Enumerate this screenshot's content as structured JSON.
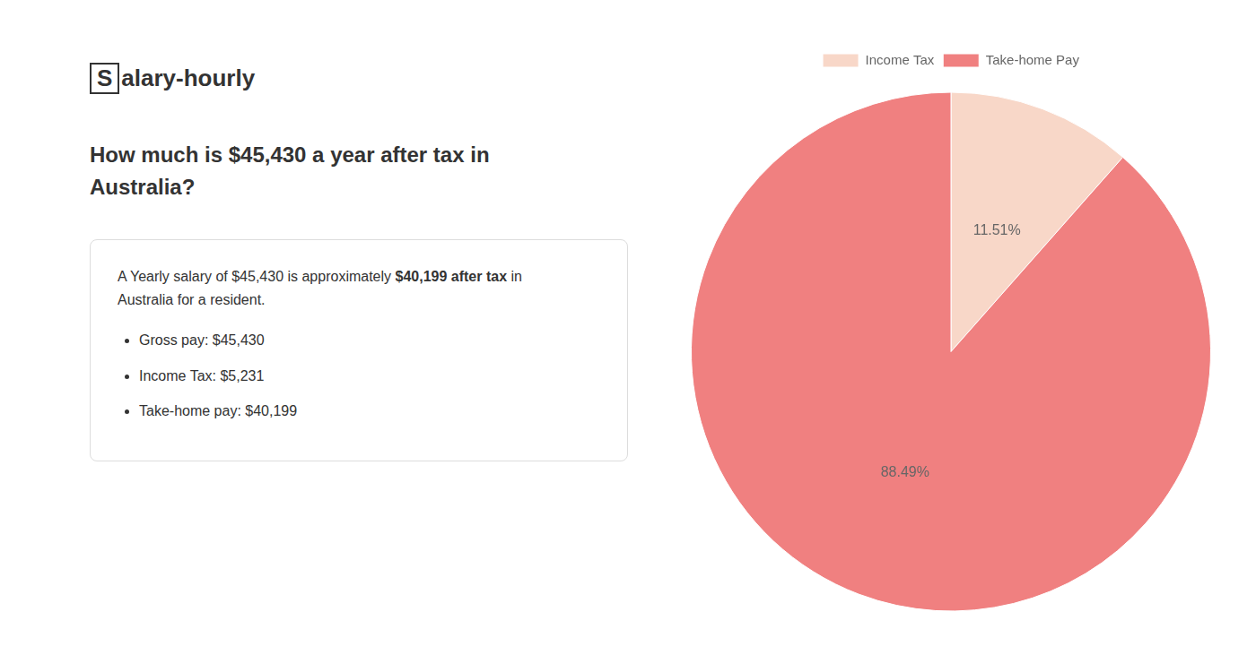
{
  "chart_data": {
    "type": "pie",
    "title": "How much is $45,430 a year after tax in\nAustralia?",
    "categories": [
      "Income Tax",
      "Take-home Pay"
    ],
    "values": [
      11.51,
      88.49
    ],
    "value_labels": [
      "11.51%",
      "88.49%"
    ],
    "colors": [
      "#f8d7c8",
      "#f08080"
    ],
    "data_labels": true,
    "legend": "top",
    "annotations": [
      [
        "S",
        "alary-hourly"
      ],
      [
        "A Yearly salary of $45,430 is approximately ",
        "$40,199 after tax",
        " in"
      ],
      [
        "Australia for a resident."
      ],
      [
        "Gross pay: $45,430"
      ],
      [
        "Income Tax: $5,231"
      ],
      [
        "Take-home pay: $40,199"
      ]
    ]
  }
}
